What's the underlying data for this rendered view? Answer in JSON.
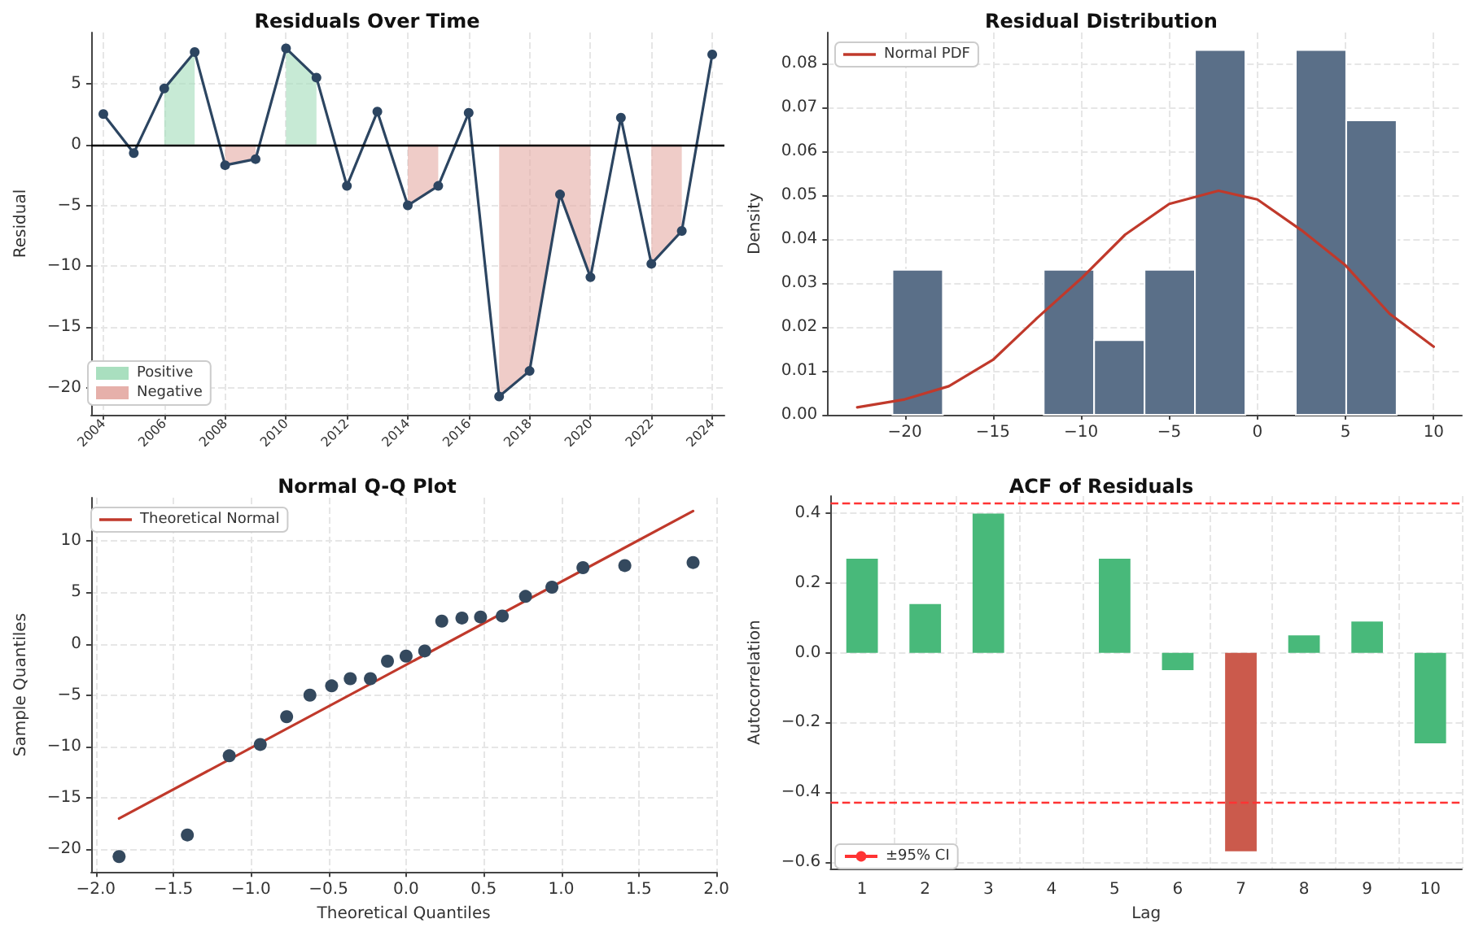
{
  "chart_data": [
    {
      "type": "line",
      "title": "Residuals Over Time",
      "ylabel": "Residual",
      "x": [
        2004,
        2005,
        2006,
        2007,
        2008,
        2009,
        2010,
        2011,
        2012,
        2013,
        2014,
        2015,
        2016,
        2017,
        2018,
        2019,
        2020,
        2021,
        2022,
        2023,
        2024
      ],
      "series": [
        {
          "name": "Positive",
          "type": "area",
          "color": "#a9dfbf",
          "values": [
            null,
            null,
            4.6,
            7.6,
            null,
            null,
            7.9,
            5.5,
            null,
            null,
            null,
            null,
            null,
            null,
            null,
            null,
            null,
            null,
            null,
            null,
            null
          ]
        },
        {
          "name": "Negative",
          "type": "area",
          "color": "#e6b0aa",
          "values": [
            null,
            null,
            null,
            null,
            -1.7,
            -1.2,
            null,
            null,
            null,
            null,
            -5.0,
            -3.4,
            null,
            -20.7,
            -18.6,
            -4.1,
            -10.9,
            null,
            -9.8,
            -7.1,
            null
          ]
        },
        {
          "color": "#2c4561",
          "marker": "circle",
          "values": [
            2.5,
            -0.7,
            4.6,
            7.6,
            -1.7,
            -1.2,
            7.9,
            5.5,
            -3.4,
            2.7,
            -5.0,
            -3.4,
            2.6,
            -20.7,
            -18.6,
            -4.1,
            -10.9,
            2.2,
            -9.8,
            -7.1,
            7.4
          ]
        }
      ],
      "xlim": [
        2003.6,
        2024.4
      ],
      "xticks": [
        2004,
        2006,
        2008,
        2010,
        2012,
        2014,
        2016,
        2018,
        2020,
        2022,
        2024
      ],
      "ylim": [
        -22.2,
        9.2
      ],
      "yticks": [
        {
          "value": -20,
          "label": "−20"
        },
        {
          "value": -15,
          "label": "−15"
        },
        {
          "value": -10,
          "label": "−10"
        },
        {
          "value": -5,
          "label": "−5"
        },
        0,
        5
      ],
      "ref_lines": [
        {
          "axis": "y",
          "value": 0,
          "color": "#000000"
        }
      ],
      "grid": true,
      "legend": "bottom left"
    },
    {
      "type": "histogram",
      "title": "Residual Distribution",
      "ylabel": "Density",
      "color": "#5a6f88",
      "bins": [
        -20.7,
        -17.84,
        -14.98,
        -12.12,
        -9.26,
        -6.4,
        -3.54,
        -0.68,
        2.18,
        5.04,
        7.9
      ],
      "values": [
        0.033,
        0,
        0,
        0.033,
        0.017,
        0.033,
        0.083,
        0,
        0.083,
        0.067
      ],
      "series": [
        {
          "name": "Normal PDF",
          "type": "line",
          "color": "#c0392b",
          "x": [
            -22.7,
            -20,
            -17.5,
            -15,
            -12.5,
            -10,
            -7.5,
            -5,
            -2.2,
            0,
            2.5,
            5,
            7.5,
            10
          ],
          "values": [
            0.0017,
            0.0035,
            0.0065,
            0.0125,
            0.022,
            0.031,
            0.041,
            0.048,
            0.051,
            0.049,
            0.042,
            0.034,
            0.023,
            0.0155
          ]
        }
      ],
      "xlim": [
        -24.4,
        11.6
      ],
      "xticks": [
        {
          "value": -20,
          "label": "−20"
        },
        {
          "value": -15,
          "label": "−15"
        },
        {
          "value": -10,
          "label": "−10"
        },
        {
          "value": -5,
          "label": "−5"
        },
        0,
        5,
        10
      ],
      "ylim": [
        0,
        0.087
      ],
      "yticks": [
        {
          "value": 0,
          "label": "0.00"
        },
        0.01,
        0.02,
        0.03,
        0.04,
        0.05,
        0.06,
        0.07,
        0.08
      ],
      "grid": true,
      "legend": "top left"
    },
    {
      "type": "scatter",
      "title": "Normal Q-Q Plot",
      "xlabel": "Theoretical Quantiles",
      "ylabel": "Sample Quantiles",
      "series": [
        {
          "color": "#34495e",
          "x": [
            -1.85,
            -1.41,
            -1.14,
            -0.94,
            -0.77,
            -0.62,
            -0.48,
            -0.36,
            -0.23,
            -0.12,
            0,
            0.12,
            0.23,
            0.36,
            0.48,
            0.62,
            0.77,
            0.94,
            1.14,
            1.41,
            1.85
          ],
          "values": [
            -20.7,
            -18.6,
            -10.9,
            -9.8,
            -7.1,
            -5.0,
            -4.1,
            -3.4,
            -3.4,
            -1.7,
            -1.2,
            -0.7,
            2.2,
            2.5,
            2.6,
            2.7,
            4.6,
            5.5,
            7.4,
            7.6,
            7.9
          ]
        },
        {
          "name": "Theoretical Normal",
          "type": "line",
          "color": "#c0392b",
          "x": [
            -1.85,
            1.85
          ],
          "values": [
            -17.0,
            12.9
          ]
        }
      ],
      "xlim": [
        -2.03,
        2.0
      ],
      "xticks": [
        {
          "value": -2,
          "label": "−2.0"
        },
        {
          "value": -1.5,
          "label": "−1.5"
        },
        {
          "value": -1,
          "label": "−1.0"
        },
        {
          "value": -0.5,
          "label": "−0.5"
        },
        {
          "value": 0,
          "label": "0.0"
        },
        0.5,
        {
          "value": 1,
          "label": "1.0"
        },
        1.5,
        {
          "value": 2,
          "label": "2.0"
        }
      ],
      "ylim": [
        -22.2,
        14.2
      ],
      "yticks": [
        {
          "value": -20,
          "label": "−20"
        },
        {
          "value": -15,
          "label": "−15"
        },
        {
          "value": -10,
          "label": "−10"
        },
        {
          "value": -5,
          "label": "−5"
        },
        0,
        5,
        10
      ],
      "grid": true,
      "legend": "top left"
    },
    {
      "type": "bar",
      "title": "ACF of Residuals",
      "xlabel": "Lag",
      "ylabel": "Autocorrelation",
      "categories": [
        "1",
        "2",
        "3",
        "4",
        "5",
        "6",
        "7",
        "8",
        "9",
        "10"
      ],
      "values": [
        0.27,
        0.14,
        0.4,
        0.0,
        0.27,
        -0.05,
        -0.57,
        0.05,
        0.09,
        -0.26
      ],
      "colors": [
        "#48b97a",
        "#48b97a",
        "#48b97a",
        "#48b97a",
        "#48b97a",
        "#48b97a",
        "#cb5a4c",
        "#48b97a",
        "#48b97a",
        "#48b97a"
      ],
      "ylim": [
        -0.62,
        0.45
      ],
      "yticks": [
        {
          "value": -0.6,
          "label": "−0.6"
        },
        {
          "value": -0.4,
          "label": "−0.4"
        },
        {
          "value": -0.2,
          "label": "−0.2"
        },
        {
          "value": 0,
          "label": "0.0"
        },
        0.2,
        0.4
      ],
      "ref_lines": [
        {
          "axis": "y",
          "value": 0.43,
          "label": "±95% CI",
          "color": "#ff3333",
          "line_style": "dashed"
        },
        {
          "axis": "y",
          "value": -0.43,
          "color": "#ff3333",
          "line_style": "dashed"
        }
      ],
      "grid": true,
      "legend": "bottom left"
    }
  ]
}
